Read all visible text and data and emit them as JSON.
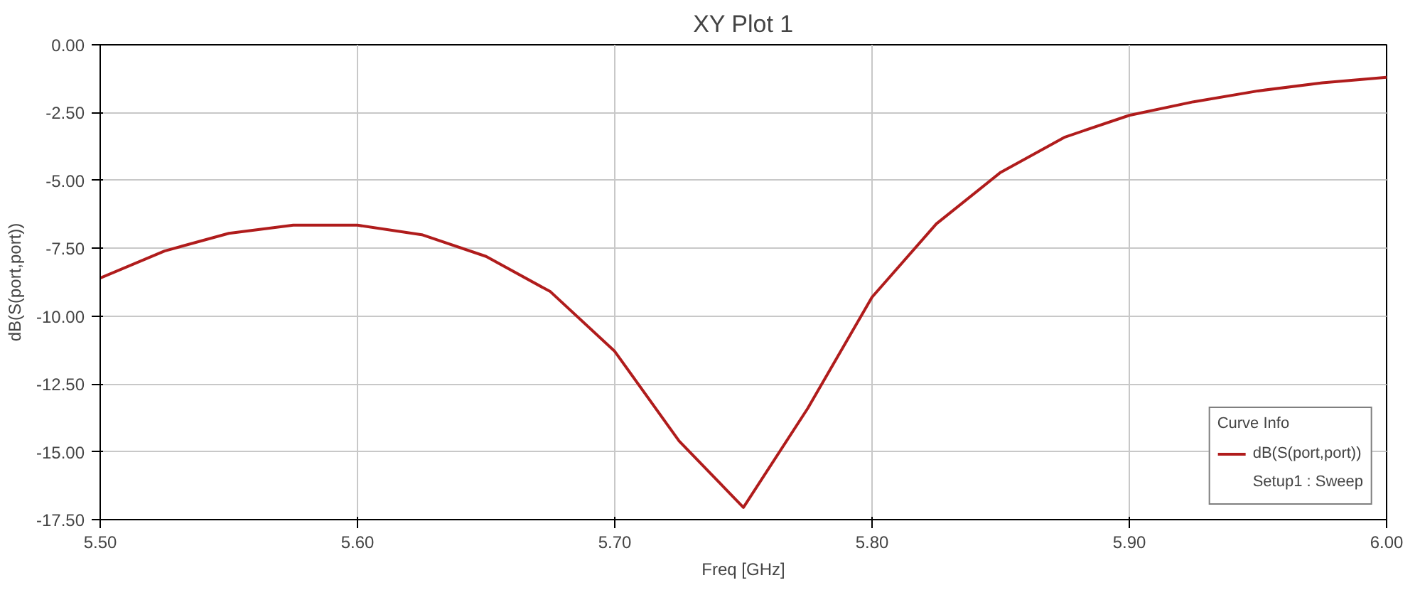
{
  "chart_data": {
    "type": "line",
    "title": "XY Plot 1",
    "xlabel": "Freq [GHz]",
    "ylabel": "dB(S(port,port))",
    "legend_title": "Curve Info",
    "annotations": [
      "Setup1 : Sweep"
    ],
    "x": [
      5.5,
      5.525,
      5.55,
      5.575,
      5.6,
      5.625,
      5.65,
      5.675,
      5.7,
      5.725,
      5.75,
      5.775,
      5.8,
      5.825,
      5.85,
      5.875,
      5.9,
      5.925,
      5.95,
      5.975,
      6.0
    ],
    "series": [
      {
        "name": "dB(S(port,port))",
        "color": "#b01c1c",
        "values": [
          -8.6,
          -7.6,
          -6.95,
          -6.65,
          -6.65,
          -7.0,
          -7.8,
          -9.1,
          -11.3,
          -14.6,
          -17.05,
          -13.4,
          -9.3,
          -6.6,
          -4.7,
          -3.4,
          -2.6,
          -2.1,
          -1.7,
          -1.4,
          -1.2
        ]
      }
    ],
    "xlim": [
      5.5,
      6.0
    ],
    "ylim": [
      -17.5,
      0
    ],
    "xticks": [
      {
        "value": 5.5,
        "label": "5.50"
      },
      {
        "value": 5.6,
        "label": "5.60"
      },
      {
        "value": 5.7,
        "label": "5.70"
      },
      {
        "value": 5.8,
        "label": "5.80"
      },
      {
        "value": 5.9,
        "label": "5.90"
      },
      {
        "value": 6.0,
        "label": "6.00"
      }
    ],
    "yticks": [
      {
        "value": -17.5,
        "label": "-17.50"
      },
      {
        "value": -15,
        "label": "-15.00"
      },
      {
        "value": -12.5,
        "label": "-12.50"
      },
      {
        "value": -10,
        "label": "-10.00"
      },
      {
        "value": -7.5,
        "label": "-7.50"
      },
      {
        "value": -5,
        "label": "-5.00"
      },
      {
        "value": -2.5,
        "label": "-2.50"
      },
      {
        "value": 0,
        "label": "0.00"
      }
    ],
    "grid": true,
    "legend": "bottom right",
    "line_style": "solid",
    "marker": "none"
  }
}
